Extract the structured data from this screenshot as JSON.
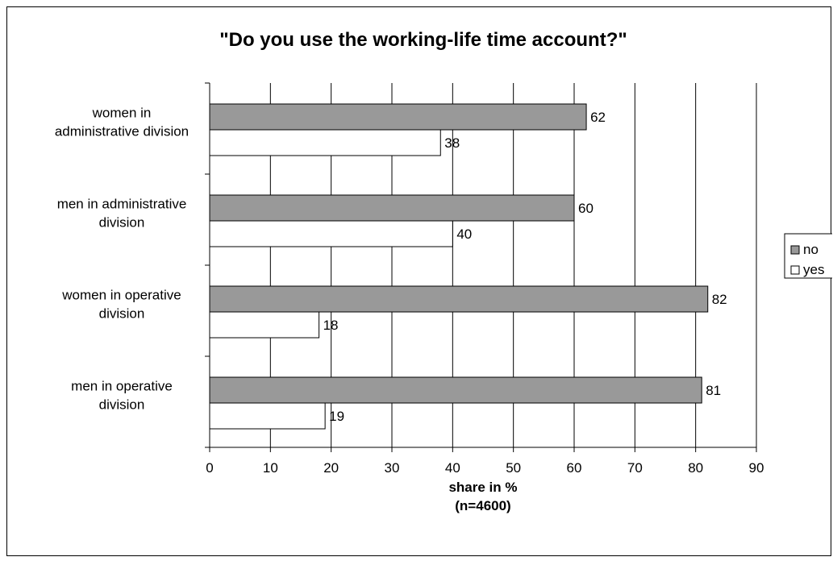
{
  "chart_data": {
    "type": "bar",
    "orientation": "horizontal",
    "title": "\"Do you use the working-life time account?\"",
    "categories": [
      [
        "women in",
        "administrative division"
      ],
      [
        "men in administrative",
        "division"
      ],
      [
        "women in operative",
        "division"
      ],
      [
        "men in operative",
        "division"
      ]
    ],
    "series": [
      {
        "name": "no",
        "values": [
          62,
          60,
          82,
          81
        ],
        "color": "#999999"
      },
      {
        "name": "yes",
        "values": [
          38,
          40,
          18,
          19
        ],
        "color": "#ffffff"
      }
    ],
    "xlabel": [
      "share in %",
      "(n=4600)"
    ],
    "xlim": [
      0,
      90
    ],
    "xticks": [
      0,
      10,
      20,
      30,
      40,
      50,
      60,
      70,
      80,
      90
    ],
    "grid": true,
    "legend_position": "right"
  }
}
